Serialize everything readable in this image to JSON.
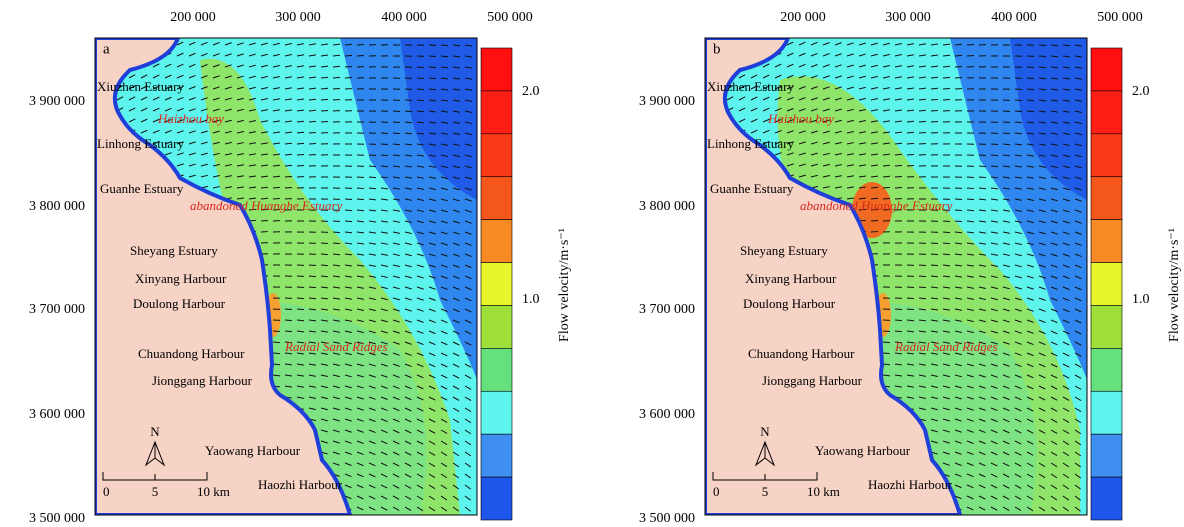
{
  "panels": [
    {
      "label": "a",
      "xticks": [
        "200 000",
        "300 000",
        "400 000",
        "500 000"
      ],
      "yticks": [
        "3 900 000",
        "3 800 000",
        "3 700 000",
        "3 600 000",
        "3 500 000"
      ],
      "places": [
        "Xiuzhen Estuary",
        "Haizhou bay",
        "Linhong Estuary",
        "Guanhe Estuary",
        "abandoned Huanghe Estuary",
        "Sheyang Estuary",
        "Xinyang Harbour",
        "Doulong Harbour",
        "Chuandong Harbour",
        "Radial Sand Ridges",
        "Jionggang Harbour",
        "Yaowang Harbour",
        "Haozhi Harbour"
      ],
      "colorbar": {
        "title": "Flow velocity/m·s⁻¹",
        "labels": [
          "2.0",
          "1.0"
        ]
      },
      "scale": [
        "0",
        "5",
        "10 km"
      ],
      "north": "N"
    },
    {
      "label": "b",
      "xticks": [
        "200 000",
        "300 000",
        "400 000",
        "500 000"
      ],
      "yticks": [
        "3 900 000",
        "3 800 000",
        "3 700 000",
        "3 600 000",
        "3 500 000"
      ],
      "places": [
        "Xiuzhen Estuary",
        "Haizhou bay",
        "Linhong Estuary",
        "Guanhe Estuary",
        "abandoned Huanghe Estuary",
        "Sheyang Estuary",
        "Xinyang Harbour",
        "Doulong Harbour",
        "Chuandong Harbour",
        "Radial Sand Ridges",
        "Jionggang Harbour",
        "Yaowang Harbour",
        "Haozhi Harbour"
      ],
      "colorbar": {
        "title": "Flow velocity/m·s⁻¹",
        "labels": [
          "2.0",
          "1.0"
        ]
      },
      "scale": [
        "0",
        "5",
        "10 km"
      ],
      "north": "N"
    }
  ]
}
